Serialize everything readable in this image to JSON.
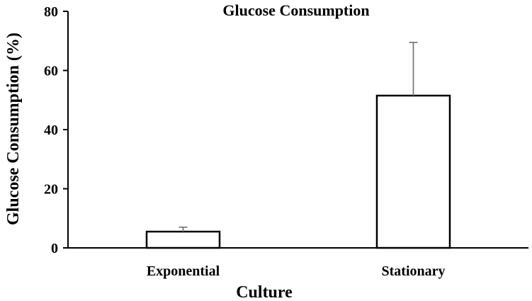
{
  "chart_data": {
    "type": "bar",
    "title": "Glucose Consumption",
    "xlabel": "Culture",
    "ylabel": "Glucose Consumption (%)",
    "categories": [
      "Exponential",
      "Stationary"
    ],
    "values": [
      5.5,
      51.5
    ],
    "error_upper": [
      1.5,
      18
    ],
    "ylim": [
      0,
      80
    ],
    "yticks": [
      "0",
      "20",
      "40",
      "60",
      "80"
    ],
    "grid": false,
    "legend": "none",
    "colors": {
      "bar_fill": "#ffffff",
      "bar_stroke": "#000000",
      "error_bar": "#7a7a7a"
    }
  }
}
